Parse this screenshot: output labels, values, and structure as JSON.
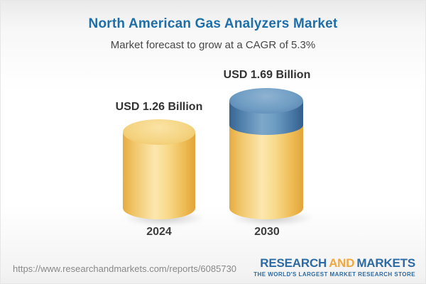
{
  "header": {
    "title": "North American Gas Analyzers Market",
    "subtitle": "Market forecast to grow at a CAGR of 5.3%"
  },
  "chart_data": {
    "type": "bar",
    "style": "3d-cylinder",
    "title": "North American Gas Analyzers Market",
    "subtitle": "Market forecast to grow at a CAGR of 5.3%",
    "cagr_percent": 5.3,
    "unit": "USD Billion",
    "categories": [
      "2024",
      "2030"
    ],
    "values": [
      1.26,
      1.69
    ],
    "value_labels": [
      "USD 1.26 Billion",
      "USD 1.69 Billion"
    ],
    "series_colors": {
      "base": "#f0c466",
      "growth_segment_2030": "#5688b5"
    },
    "legend": "none",
    "axes": "none",
    "grid": false
  },
  "footer": {
    "url": "https://www.researchandmarkets.com/reports/6085730",
    "logo": {
      "word1": "RESEARCH",
      "word2": "AND",
      "word3": "MARKETS",
      "tagline": "THE WORLD'S LARGEST MARKET RESEARCH STORE"
    }
  },
  "colors": {
    "title_blue": "#1e6fa8",
    "subtitle_gray": "#474747",
    "bar_yellow": "#f0c466",
    "bar_blue": "#5688b5",
    "category_label": "#3d3d3d",
    "url_gray": "#888888",
    "logo_blue": "#2b6aa4",
    "logo_orange": "#efa73e"
  }
}
